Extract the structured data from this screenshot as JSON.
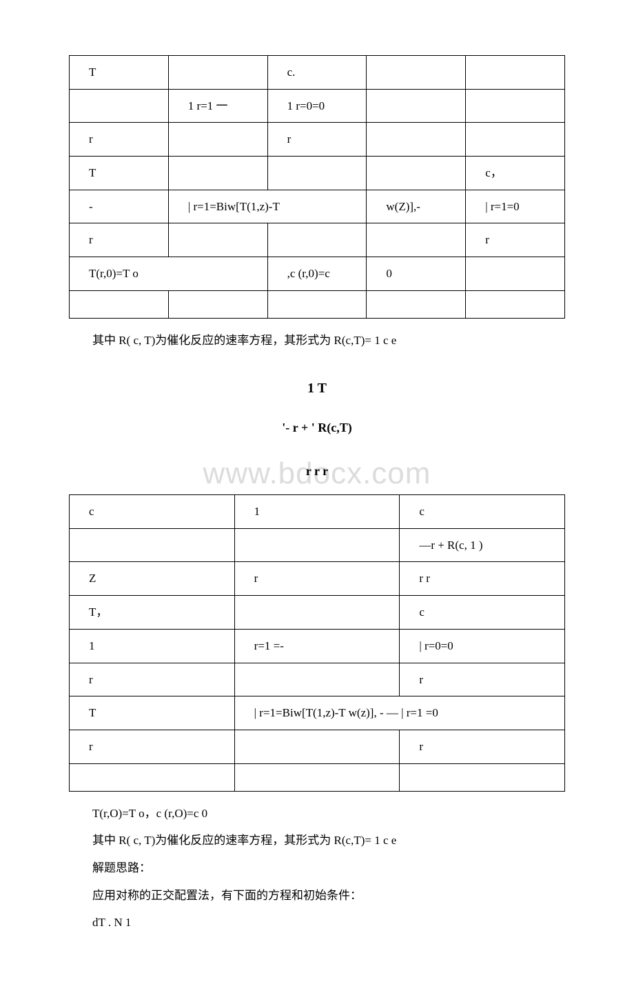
{
  "table1": {
    "columns": 5,
    "rows": [
      [
        "T",
        "",
        "c.",
        "",
        ""
      ],
      [
        "",
        "1 r=1 一",
        "1 r=0=0",
        "",
        ""
      ],
      [
        "r",
        "",
        "r",
        "",
        ""
      ],
      [
        "T",
        "",
        "",
        "",
        "c，"
      ],
      [
        "-",
        "| r=1=Biw[T(1,z)-T",
        "",
        "w(Z)],-",
        "| r=1=0"
      ],
      [
        "r",
        "",
        "",
        "",
        "r"
      ],
      [
        "T(r,0)=T o",
        "",
        ",c (r,0)=c",
        "0",
        ""
      ],
      [
        "",
        "",
        "",
        "",
        ""
      ]
    ],
    "spans": {
      "4,1": 2,
      "6,0": 2
    }
  },
  "para1": "其中 R( c, T)为催化反应的速率方程，其形式为 R(c,T)= 1 c e",
  "heading_big": "1 T",
  "heading_sub": "'- r + ' R(c,T)",
  "watermark": "www.bdocx.com",
  "heading_overlay": "r r r",
  "table2": {
    "columns": 3,
    "rows": [
      [
        "c",
        "1",
        "c"
      ],
      [
        "",
        "",
        "—r + R(c, 1 )"
      ],
      [
        "Z",
        "r",
        "r r"
      ],
      [
        "T，",
        "",
        "c"
      ],
      [
        "1",
        "r=1 =-",
        "| r=0=0"
      ],
      [
        "r",
        "",
        "r"
      ],
      [
        "T",
        "| r=1=Biw[T(1,z)-T w(z)], - — | r=1 =0",
        ""
      ],
      [
        "r",
        "",
        "r"
      ],
      [
        "",
        "",
        ""
      ]
    ],
    "spans": {
      "6,1": 2
    }
  },
  "para2": "T(r,O)=T o，c (r,O)=c 0",
  "para3": "其中 R( c, T)为催化反应的速率方程，其形式为 R(c,T)= 1 c e",
  "para4": "解题思路：",
  "para5": "应用对称的正交配置法，有下面的方程和初始条件：",
  "para6": "dT . N 1"
}
